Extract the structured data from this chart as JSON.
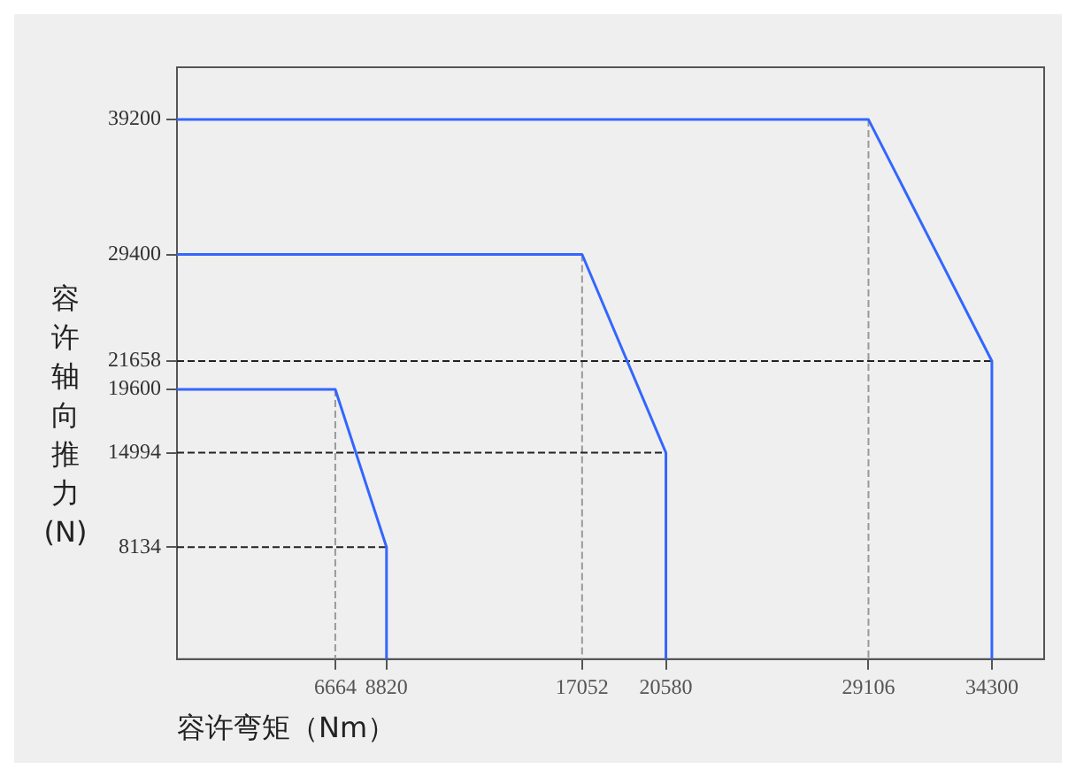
{
  "chart_data": {
    "type": "line",
    "xlabel": "容许弯矩（Nm）",
    "ylabel": "容许轴向推力(N)",
    "series": [
      {
        "color": "#3366ff",
        "x": [
          0,
          6664,
          8820,
          8820
        ],
        "values": [
          19600,
          19600,
          8134,
          0
        ]
      },
      {
        "color": "#3366ff",
        "x": [
          0,
          17052,
          20580,
          20580
        ],
        "values": [
          29400,
          29400,
          14994,
          0
        ]
      },
      {
        "color": "#3366ff",
        "x": [
          0,
          29106,
          34300,
          34300
        ],
        "values": [
          39200,
          39200,
          21658,
          0
        ]
      },
      {
        "color": "#222222",
        "line_style": "dashed",
        "x": [
          0,
          34300
        ],
        "values": [
          21658,
          21658
        ]
      },
      {
        "color": "#222222",
        "line_style": "dashed",
        "x": [
          0,
          20580
        ],
        "values": [
          14994,
          14994
        ]
      },
      {
        "color": "#222222",
        "line_style": "dashed",
        "x": [
          0,
          8820
        ],
        "values": [
          8134,
          8134
        ]
      },
      {
        "color": "#999999",
        "line_style": "dashed",
        "x": [
          6664,
          6664
        ],
        "values": [
          19600,
          0
        ]
      },
      {
        "color": "#999999",
        "line_style": "dashed",
        "x": [
          17052,
          17052
        ],
        "values": [
          29400,
          0
        ]
      },
      {
        "color": "#999999",
        "line_style": "dashed",
        "x": [
          29106,
          29106
        ],
        "values": [
          39200,
          0
        ]
      }
    ],
    "xlim": [
      0,
      36500
    ],
    "xticks": [
      6664,
      8820,
      17052,
      20580,
      29106,
      34300
    ],
    "ylim": [
      0,
      43000
    ],
    "yticks": [
      8134,
      14994,
      19600,
      21658,
      29400,
      39200
    ],
    "grid": false,
    "legend": false,
    "marker": "none"
  }
}
